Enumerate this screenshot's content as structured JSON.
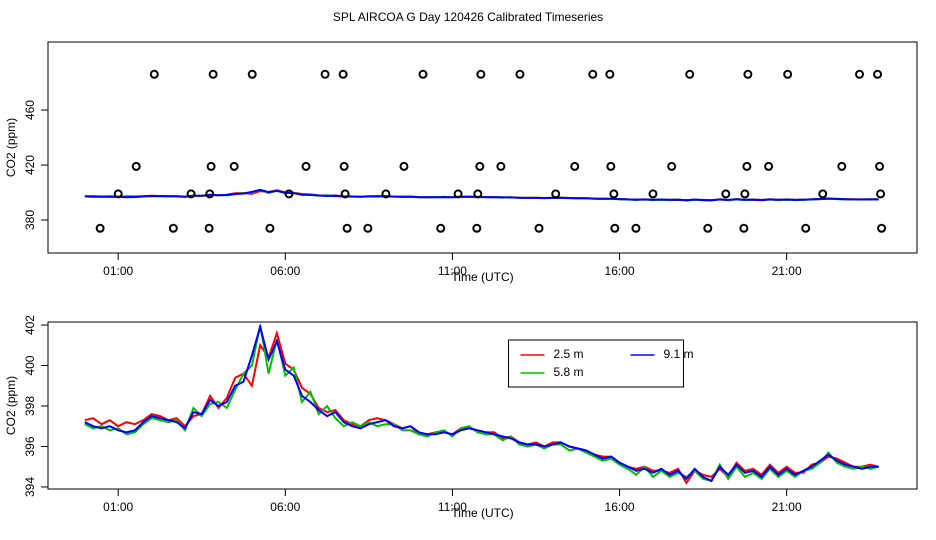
{
  "title": "SPL AIRCOA G  Day 120426  Calibrated Timeseries",
  "chart_data": [
    {
      "type": "scatter",
      "xlabel": "Time (UTC)",
      "ylabel": "CO2 (ppm)",
      "xlim": [
        -1.1,
        24.9
      ],
      "ylim": [
        356,
        509.5
      ],
      "xticks": [
        {
          "value": 1,
          "label": "01:00"
        },
        {
          "value": 6,
          "label": "06:00"
        },
        {
          "value": 11,
          "label": "11:00"
        },
        {
          "value": 16,
          "label": "16:00"
        },
        {
          "value": 21,
          "label": "21:00"
        }
      ],
      "yticks": [
        380,
        420,
        460
      ],
      "color": "#000000",
      "x": [
        2.08,
        3.84,
        5.01,
        7.19,
        7.73,
        10.12,
        11.85,
        13.02,
        15.2,
        15.71,
        18.1,
        19.84,
        21.03,
        23.18,
        23.72,
        1.54,
        3.78,
        4.47,
        6.62,
        7.76,
        9.55,
        11.82,
        12.45,
        14.66,
        15.74,
        17.56,
        19.81,
        20.46,
        22.65,
        23.78,
        1.0,
        3.18,
        3.74,
        6.11,
        7.79,
        9.01,
        11.17,
        11.76,
        14.09,
        15.83,
        17.0,
        19.18,
        19.75,
        22.08,
        23.81,
        0.46,
        2.65,
        3.72,
        5.54,
        7.85,
        8.47,
        10.65,
        11.73,
        13.59,
        15.86,
        16.49,
        18.64,
        19.72,
        21.57,
        23.84
      ],
      "values": [
        486,
        486,
        486,
        486,
        486,
        486,
        486,
        486,
        486,
        486,
        486,
        486,
        486,
        486,
        486,
        419,
        419,
        419,
        419,
        419,
        419,
        419,
        419,
        419,
        419,
        419,
        419,
        419,
        419,
        419,
        399,
        399,
        399,
        399,
        399,
        399,
        399,
        399,
        399,
        399,
        399,
        399,
        399,
        399,
        399,
        374,
        374,
        374,
        374,
        374,
        374,
        374,
        374,
        374,
        374,
        374,
        374,
        374,
        374,
        374
      ]
    },
    {
      "type": "line",
      "xlabel": "Time (UTC)",
      "ylabel": "CO2 (ppm)",
      "xlim": [
        -1.1,
        24.9
      ],
      "ylim": [
        393.9,
        402.15
      ],
      "xticks": [
        {
          "value": 1,
          "label": "01:00"
        },
        {
          "value": 6,
          "label": "06:00"
        },
        {
          "value": 11,
          "label": "11:00"
        },
        {
          "value": 16,
          "label": "16:00"
        },
        {
          "value": 21,
          "label": "21:00"
        }
      ],
      "yticks": [
        394,
        396,
        398,
        400,
        402
      ],
      "legend": "top",
      "x": [
        0,
        0.25,
        0.5,
        0.75,
        1,
        1.25,
        1.5,
        1.75,
        2,
        2.25,
        2.5,
        2.75,
        3,
        3.25,
        3.5,
        3.75,
        4,
        4.25,
        4.5,
        4.75,
        5,
        5.25,
        5.5,
        5.75,
        6,
        6.25,
        6.5,
        6.75,
        7,
        7.25,
        7.5,
        7.75,
        8,
        8.25,
        8.5,
        8.75,
        9,
        9.25,
        9.5,
        9.75,
        10,
        10.25,
        10.5,
        10.75,
        11,
        11.25,
        11.5,
        11.75,
        12,
        12.25,
        12.5,
        12.75,
        13,
        13.25,
        13.5,
        13.75,
        14,
        14.25,
        14.5,
        14.75,
        15,
        15.25,
        15.5,
        15.75,
        16,
        16.25,
        16.5,
        16.75,
        17,
        17.25,
        17.5,
        17.75,
        18,
        18.25,
        18.5,
        18.75,
        19,
        19.25,
        19.5,
        19.75,
        20,
        20.25,
        20.5,
        20.75,
        21,
        21.25,
        21.5,
        21.75,
        22,
        22.25,
        22.5,
        22.75,
        23,
        23.25,
        23.5,
        23.75
      ],
      "series": [
        {
          "name": "2.5 m",
          "color": "#ff0000",
          "values": [
            397.3,
            397.4,
            397.1,
            397.3,
            397.0,
            397.2,
            397.1,
            397.3,
            397.6,
            397.5,
            397.3,
            397.4,
            397.0,
            397.5,
            397.6,
            398.5,
            397.9,
            398.4,
            399.4,
            399.6,
            399.0,
            401.0,
            400.4,
            401.6,
            400.1,
            399.8,
            398.9,
            398.6,
            397.9,
            397.7,
            397.8,
            397.3,
            397.1,
            397.0,
            397.3,
            397.4,
            397.3,
            397.1,
            396.9,
            397.0,
            396.6,
            396.6,
            396.7,
            396.7,
            396.6,
            396.9,
            396.9,
            396.8,
            396.7,
            396.7,
            396.4,
            396.5,
            396.2,
            396.1,
            396.2,
            396.0,
            396.2,
            396.2,
            396.0,
            395.9,
            395.8,
            395.6,
            395.5,
            395.5,
            395.2,
            395.0,
            394.9,
            395.0,
            394.8,
            394.8,
            394.7,
            394.9,
            394.2,
            394.8,
            394.6,
            394.5,
            394.9,
            394.5,
            395.2,
            394.8,
            394.9,
            394.6,
            395.1,
            394.7,
            395.0,
            394.7,
            394.7,
            395.1,
            395.2,
            395.5,
            395.4,
            395.2,
            395.0,
            395.0,
            395.1,
            395.0
          ]
        },
        {
          "name": "5.8 m",
          "color": "#00c000",
          "values": [
            397.1,
            396.9,
            397.0,
            396.8,
            396.9,
            396.6,
            396.7,
            397.1,
            397.4,
            397.3,
            397.2,
            397.3,
            396.8,
            397.9,
            397.5,
            398.1,
            398.2,
            397.9,
            398.8,
            399.6,
            400.0,
            402.0,
            399.6,
            401.3,
            399.5,
            399.9,
            398.2,
            398.7,
            397.6,
            398.0,
            397.4,
            397.0,
            397.2,
            397.0,
            397.2,
            397.0,
            397.1,
            397.1,
            396.8,
            396.8,
            396.6,
            396.5,
            396.7,
            396.8,
            396.5,
            396.9,
            397.0,
            396.7,
            396.6,
            396.6,
            396.3,
            396.5,
            396.1,
            396.0,
            396.1,
            395.9,
            396.1,
            396.1,
            395.8,
            395.9,
            395.7,
            395.5,
            395.3,
            395.4,
            395.1,
            394.9,
            394.6,
            395.0,
            394.5,
            394.8,
            394.5,
            394.7,
            394.5,
            394.8,
            394.4,
            394.3,
            395.1,
            394.4,
            395.0,
            394.5,
            394.7,
            394.4,
            394.9,
            394.5,
            394.8,
            394.5,
            394.8,
            394.9,
            395.2,
            395.7,
            395.2,
            395.0,
            394.9,
            395.0,
            394.9,
            395.0
          ]
        },
        {
          "name": "9.1 m",
          "color": "#0000ff",
          "values": [
            397.2,
            397.0,
            396.9,
            397.0,
            396.8,
            396.7,
            396.8,
            397.2,
            397.5,
            397.4,
            397.3,
            397.2,
            396.9,
            397.7,
            397.6,
            398.3,
            398.0,
            398.2,
            399.0,
            399.2,
            400.5,
            401.9,
            400.3,
            401.2,
            399.8,
            399.5,
            398.5,
            398.2,
            397.8,
            397.5,
            397.7,
            397.2,
            397.0,
            396.9,
            397.1,
            397.2,
            397.3,
            397.0,
            396.9,
            397.0,
            396.7,
            396.6,
            396.6,
            396.7,
            396.6,
            396.8,
            396.9,
            396.8,
            396.7,
            396.6,
            396.5,
            396.4,
            396.2,
            396.1,
            396.1,
            396.0,
            396.1,
            396.2,
            396.0,
            395.9,
            395.8,
            395.6,
            395.4,
            395.5,
            395.2,
            395.0,
            394.8,
            394.9,
            394.7,
            394.9,
            394.6,
            394.8,
            394.4,
            394.9,
            394.5,
            394.3,
            395.0,
            394.6,
            395.1,
            394.7,
            394.8,
            394.5,
            395.0,
            394.6,
            394.9,
            394.6,
            394.8,
            395.0,
            395.3,
            395.6,
            395.3,
            395.1,
            395.0,
            394.9,
            395.0,
            395.0
          ]
        }
      ]
    }
  ]
}
